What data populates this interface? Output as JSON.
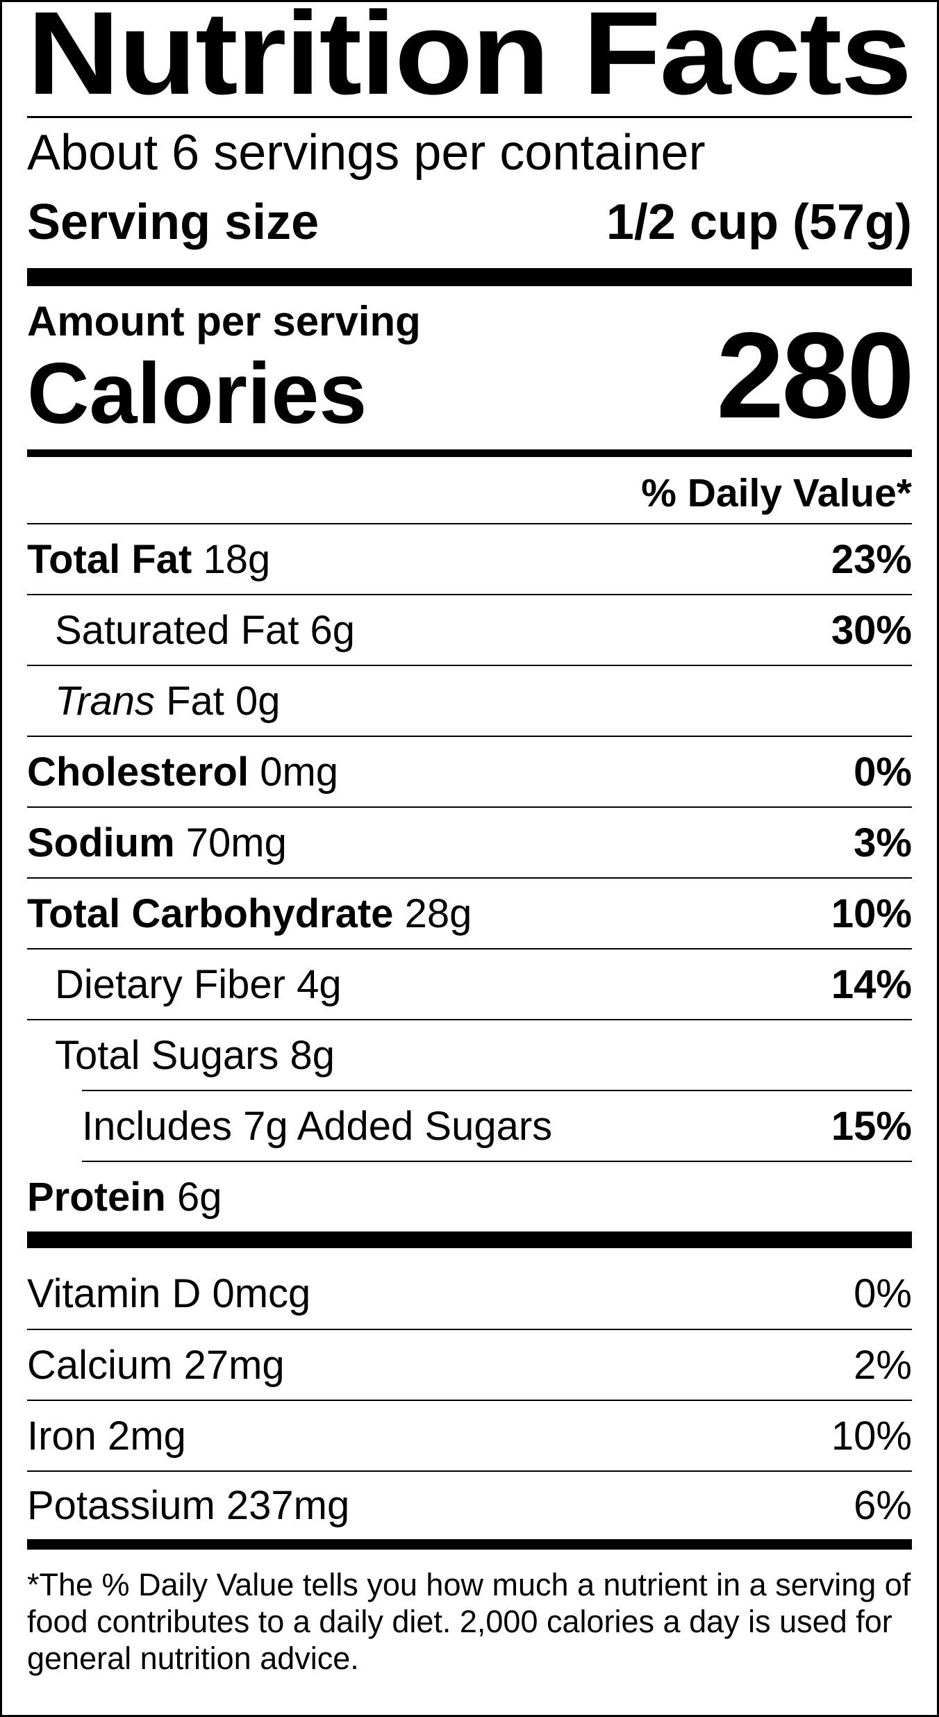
{
  "title": "Nutrition Facts",
  "servings_per_container": "About 6 servings per container",
  "serving_size": {
    "label": "Serving size",
    "value": "1/2 cup (57g)"
  },
  "amount_per_serving": "Amount per serving",
  "calories": {
    "label": "Calories",
    "value": "280"
  },
  "daily_value_header": "% Daily Value*",
  "nutrients": [
    {
      "name": "Total Fat",
      "amount": "18g",
      "dv": "23%"
    },
    {
      "name": "Saturated Fat 6g",
      "dv": "30%"
    },
    {
      "name_italic": "Trans",
      "name": " Fat 0g"
    },
    {
      "name": "Cholesterol",
      "amount": "0mg",
      "dv": "0%"
    },
    {
      "name": "Sodium",
      "amount": "70mg",
      "dv": "3%"
    },
    {
      "name": "Total Carbohydrate",
      "amount": "28g",
      "dv": "10%"
    },
    {
      "name": "Dietary Fiber 4g",
      "dv": "14%"
    },
    {
      "name": "Total Sugars 8g"
    },
    {
      "name": "Includes 7g Added Sugars",
      "dv": "15%"
    },
    {
      "name": "Protein",
      "amount": "6g"
    }
  ],
  "vitamins": [
    {
      "name": "Vitamin D 0mcg",
      "dv": "0%"
    },
    {
      "name": "Calcium 27mg",
      "dv": "2%"
    },
    {
      "name": "Iron 2mg",
      "dv": "10%"
    },
    {
      "name": "Potassium 237mg",
      "dv": "6%"
    }
  ],
  "footnote": "*The % Daily Value tells you how much a nutrient in a serving of food contributes to a daily diet. 2,000 calories a day is used for general nutrition advice."
}
